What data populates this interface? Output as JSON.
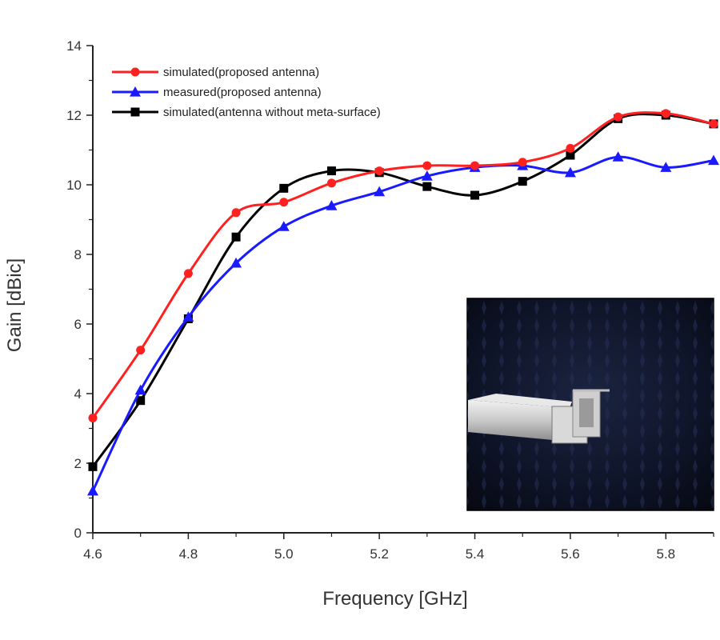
{
  "chart_data": {
    "type": "line",
    "title": "",
    "xlabel": "Frequency [GHz]",
    "ylabel": "Gain [dBic]",
    "xlim": [
      4.6,
      5.9
    ],
    "ylim": [
      0,
      14
    ],
    "xticks": [
      4.6,
      4.8,
      5.0,
      5.2,
      5.4,
      5.6,
      5.8
    ],
    "xtick_labels": [
      "4.6",
      "4.8",
      "5.0",
      "5.2",
      "5.4",
      "5.6",
      "5.8"
    ],
    "yticks": [
      0,
      2,
      4,
      6,
      8,
      10,
      12,
      14
    ],
    "ytick_labels": [
      "0",
      "2",
      "4",
      "6",
      "8",
      "10",
      "12",
      "14"
    ],
    "grid": false,
    "legend_position": "top-left",
    "series": [
      {
        "name": "simulated(proposed antenna)",
        "color": "#ff2020",
        "marker": "circle",
        "x": [
          4.6,
          4.7,
          4.8,
          4.9,
          5.0,
          5.1,
          5.2,
          5.3,
          5.4,
          5.5,
          5.6,
          5.7,
          5.8,
          5.9
        ],
        "y": [
          3.3,
          5.25,
          7.45,
          9.2,
          9.5,
          10.05,
          10.4,
          10.55,
          10.55,
          10.65,
          11.05,
          11.95,
          12.05,
          11.75
        ]
      },
      {
        "name": "measured(proposed antenna)",
        "color": "#1a1aff",
        "marker": "triangle",
        "x": [
          4.6,
          4.7,
          4.8,
          4.9,
          5.0,
          5.1,
          5.2,
          5.3,
          5.4,
          5.5,
          5.6,
          5.7,
          5.8,
          5.9
        ],
        "y": [
          1.2,
          4.1,
          6.2,
          7.75,
          8.8,
          9.4,
          9.8,
          10.25,
          10.5,
          10.55,
          10.35,
          10.8,
          10.5,
          10.7
        ]
      },
      {
        "name": "simulated(antenna without meta-surface)",
        "color": "#000000",
        "marker": "square",
        "x": [
          4.6,
          4.7,
          4.8,
          4.9,
          5.0,
          5.1,
          5.2,
          5.3,
          5.4,
          5.5,
          5.6,
          5.7,
          5.8,
          5.9
        ],
        "y": [
          1.9,
          3.8,
          6.15,
          8.5,
          9.9,
          10.4,
          10.35,
          9.95,
          9.7,
          10.1,
          10.85,
          11.9,
          12.0,
          11.75
        ]
      }
    ],
    "inset_image": {
      "description_icon": "antenna-photo"
    }
  }
}
